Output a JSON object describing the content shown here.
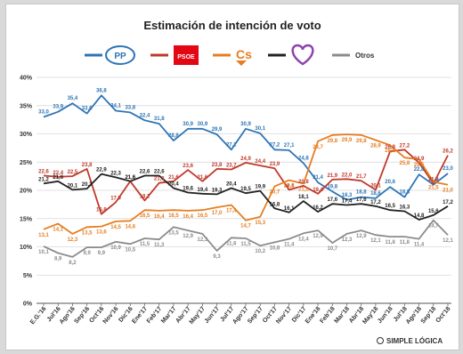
{
  "chart_data": {
    "type": "line",
    "title": "Estimación de intención de voto",
    "xlabel": "",
    "ylabel": "",
    "ylim": [
      0,
      40
    ],
    "yticks": [
      "0%",
      "5%",
      "10%",
      "15%",
      "20%",
      "25%",
      "30%",
      "35%",
      "40%"
    ],
    "grid": true,
    "legend_position": "top",
    "source": "SIMPLE LÓGICA",
    "categories": [
      "E.G.'16",
      "Jul'16",
      "Ago'16",
      "Sep'16",
      "Oct'16",
      "Nov'16",
      "Dic'16",
      "Ene'17",
      "Feb'17",
      "Mar'17",
      "Abr'17",
      "May'17",
      "Jun'17",
      "Jul'17",
      "Ago'17",
      "Sep'17",
      "Oct'17",
      "Nov'17",
      "Dic'17",
      "Ene'18",
      "Feb'18",
      "Mar'18",
      "Abr'18",
      "May'18",
      "Jun'18",
      "Jul'18",
      "Ago'18",
      "Sep'18",
      "Oct'18"
    ],
    "series": [
      {
        "name": "PP",
        "legend_icon": "pp-logo-icon",
        "color": "#2e75b6",
        "values": [
          33.0,
          33.9,
          35.4,
          33.6,
          36.8,
          34.1,
          33.8,
          32.4,
          31.8,
          28.8,
          30.9,
          30.9,
          29.9,
          27.2,
          30.9,
          30.1,
          27.2,
          27.1,
          24.8,
          21.4,
          19.8,
          18.3,
          18.8,
          18.6,
          20.6,
          18.8,
          22.8,
          21.0,
          23.0
        ],
        "labels": [
          "33,0",
          "33,9",
          "35,4",
          "33,6",
          "36,8",
          "34,1",
          "33,8",
          "32,4",
          "31,8",
          "28,8",
          "30,9",
          "30,9",
          "29,9",
          "27,2",
          "30,9",
          "30,1",
          "27,2",
          "27,1",
          "24,8",
          "21,4",
          "19,8",
          "18,3",
          "18,8",
          "18,6",
          "20,6",
          "18,8",
          "22,8",
          "21,0",
          "23,0"
        ]
      },
      {
        "name": "PSOE",
        "legend_icon": "psoe-logo-icon",
        "color": "#c0392b",
        "values": [
          22.6,
          22.4,
          22.5,
          23.8,
          15.8,
          17.9,
          21.6,
          18.2,
          21.3,
          21.6,
          23.6,
          21.6,
          23.8,
          23.7,
          24.9,
          24.4,
          23.9,
          20.1,
          20.8,
          19.4,
          21.9,
          22.0,
          21.7,
          20.1,
          26.9,
          27.2,
          24.9,
          21.2,
          26.2
        ],
        "labels": [
          "22,6",
          "22,4",
          "22,5",
          "23,8",
          "15,8",
          "17,9",
          "21,6",
          "18,2",
          "21,3",
          "21,6",
          "23,6",
          "21,6",
          "23,8",
          "23,7",
          "24,9",
          "24,4",
          "23,9",
          "20,1",
          "20,8",
          "19,4",
          "21,9",
          "22,0",
          "21,7",
          "20,1",
          "26,9",
          "27,2",
          "24,9",
          "21,2",
          "26,2"
        ]
      },
      {
        "name": "Cs",
        "legend_icon": "cs-logo-icon",
        "color": "#e67e22",
        "values": [
          13.1,
          14.1,
          12.3,
          13.5,
          13.6,
          14.5,
          14.6,
          16.5,
          16.4,
          16.5,
          16.4,
          16.5,
          17.0,
          17.4,
          14.7,
          15.3,
          20.7,
          21.8,
          21.2,
          28.7,
          29.8,
          29.9,
          29.8,
          28.9,
          28.0,
          25.8,
          25.5,
          21.5,
          21.0
        ],
        "labels": [
          "13,1",
          "14,1",
          "12,3",
          "13,5",
          "13,6",
          "14,5",
          "14,6",
          "16,5",
          "16,4",
          "16,5",
          "16,4",
          "16,5",
          "17,0",
          "17,4",
          "14,7",
          "15,3",
          "20,7",
          "21,8",
          "21,2",
          "28,7",
          "29,8",
          "29,9",
          "29,8",
          "28,9",
          "28,0",
          "25,8",
          "25,5",
          "21,5",
          "21,0"
        ]
      },
      {
        "name": "Unidos Podemos",
        "legend_icon": "heart-logo-icon",
        "color": "#222222",
        "values": [
          21.2,
          21.6,
          20.1,
          20.3,
          22.9,
          22.3,
          21.6,
          22.6,
          22.6,
          20.4,
          19.6,
          19.4,
          19.3,
          20.4,
          19.5,
          19.9,
          16.8,
          16.1,
          18.1,
          16.2,
          17.6,
          17.4,
          17.6,
          17.2,
          16.5,
          16.3,
          14.8,
          15.6,
          17.2
        ],
        "labels": [
          "21,2",
          "21,6",
          "20,1",
          "20,3",
          "22,9",
          "22,3",
          "21,6",
          "22,6",
          "22,6",
          "20,4",
          "19,6",
          "19,4",
          "19,3",
          "20,4",
          "19,5",
          "19,9",
          "16,8",
          "16,1",
          "18,1",
          "16,2",
          "17,6",
          "17,4",
          "17,6",
          "17,2",
          "16,5",
          "16,3",
          "14,8",
          "15,6",
          "17,2"
        ]
      },
      {
        "name": "Otros",
        "legend_icon": "",
        "color": "#8c8c8c",
        "values": [
          10.1,
          8.9,
          8.2,
          9.9,
          9.9,
          10.9,
          10.5,
          11.5,
          11.3,
          13.5,
          12.9,
          12.3,
          9.3,
          11.6,
          11.5,
          10.2,
          10.8,
          11.4,
          12.4,
          12.9,
          10.7,
          12.3,
          12.9,
          12.1,
          11.8,
          11.8,
          11.4,
          14.7,
          12.1
        ],
        "labels": [
          "10,1",
          "8,9",
          "8,2",
          "9,9",
          "9,9",
          "10,9",
          "10,5",
          "11,5",
          "11,3",
          "13,5",
          "12,9",
          "12,3",
          "9,3",
          "11,6",
          "11,5",
          "10,2",
          "10,8",
          "11,4",
          "12,4",
          "12,9",
          "10,7",
          "12,3",
          "12,9",
          "12,1",
          "11,8",
          "11,8",
          "11,4",
          "14,7",
          "12,1"
        ]
      }
    ]
  }
}
